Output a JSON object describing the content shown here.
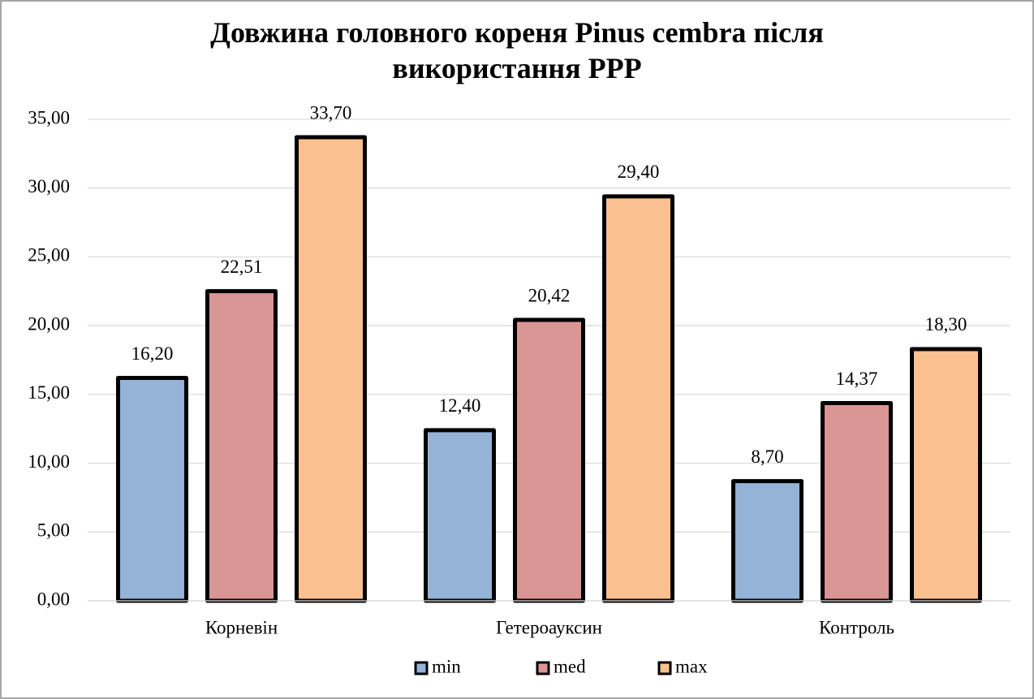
{
  "chart_data": {
    "type": "bar",
    "title": "Довжина головного кореня Pinus cembra після використання PPP",
    "categories": [
      "Корневін",
      "Гетероауксин",
      "Контроль"
    ],
    "series": [
      {
        "name": "min",
        "color": "#95b3d7",
        "values": [
          16.2,
          12.4,
          8.7
        ],
        "value_labels": [
          "16,20",
          "12,40",
          "8,70"
        ]
      },
      {
        "name": "med",
        "color": "#d99694",
        "values": [
          22.51,
          20.42,
          14.37
        ],
        "value_labels": [
          "22,51",
          "20,42",
          "14,37"
        ]
      },
      {
        "name": "max",
        "color": "#fac090",
        "values": [
          33.7,
          29.4,
          18.3
        ],
        "value_labels": [
          "33,70",
          "29,40",
          "18,30"
        ]
      }
    ],
    "ylim": [
      0,
      35
    ],
    "yticks": [
      {
        "value": 0,
        "label": "0,00"
      },
      {
        "value": 5,
        "label": "5,00"
      },
      {
        "value": 10,
        "label": "10,00"
      },
      {
        "value": 15,
        "label": "15,00"
      },
      {
        "value": 20,
        "label": "20,00"
      },
      {
        "value": 25,
        "label": "25,00"
      },
      {
        "value": 30,
        "label": "30,00"
      },
      {
        "value": 35,
        "label": "35,00"
      }
    ],
    "grid": true,
    "legend": "bottom"
  }
}
